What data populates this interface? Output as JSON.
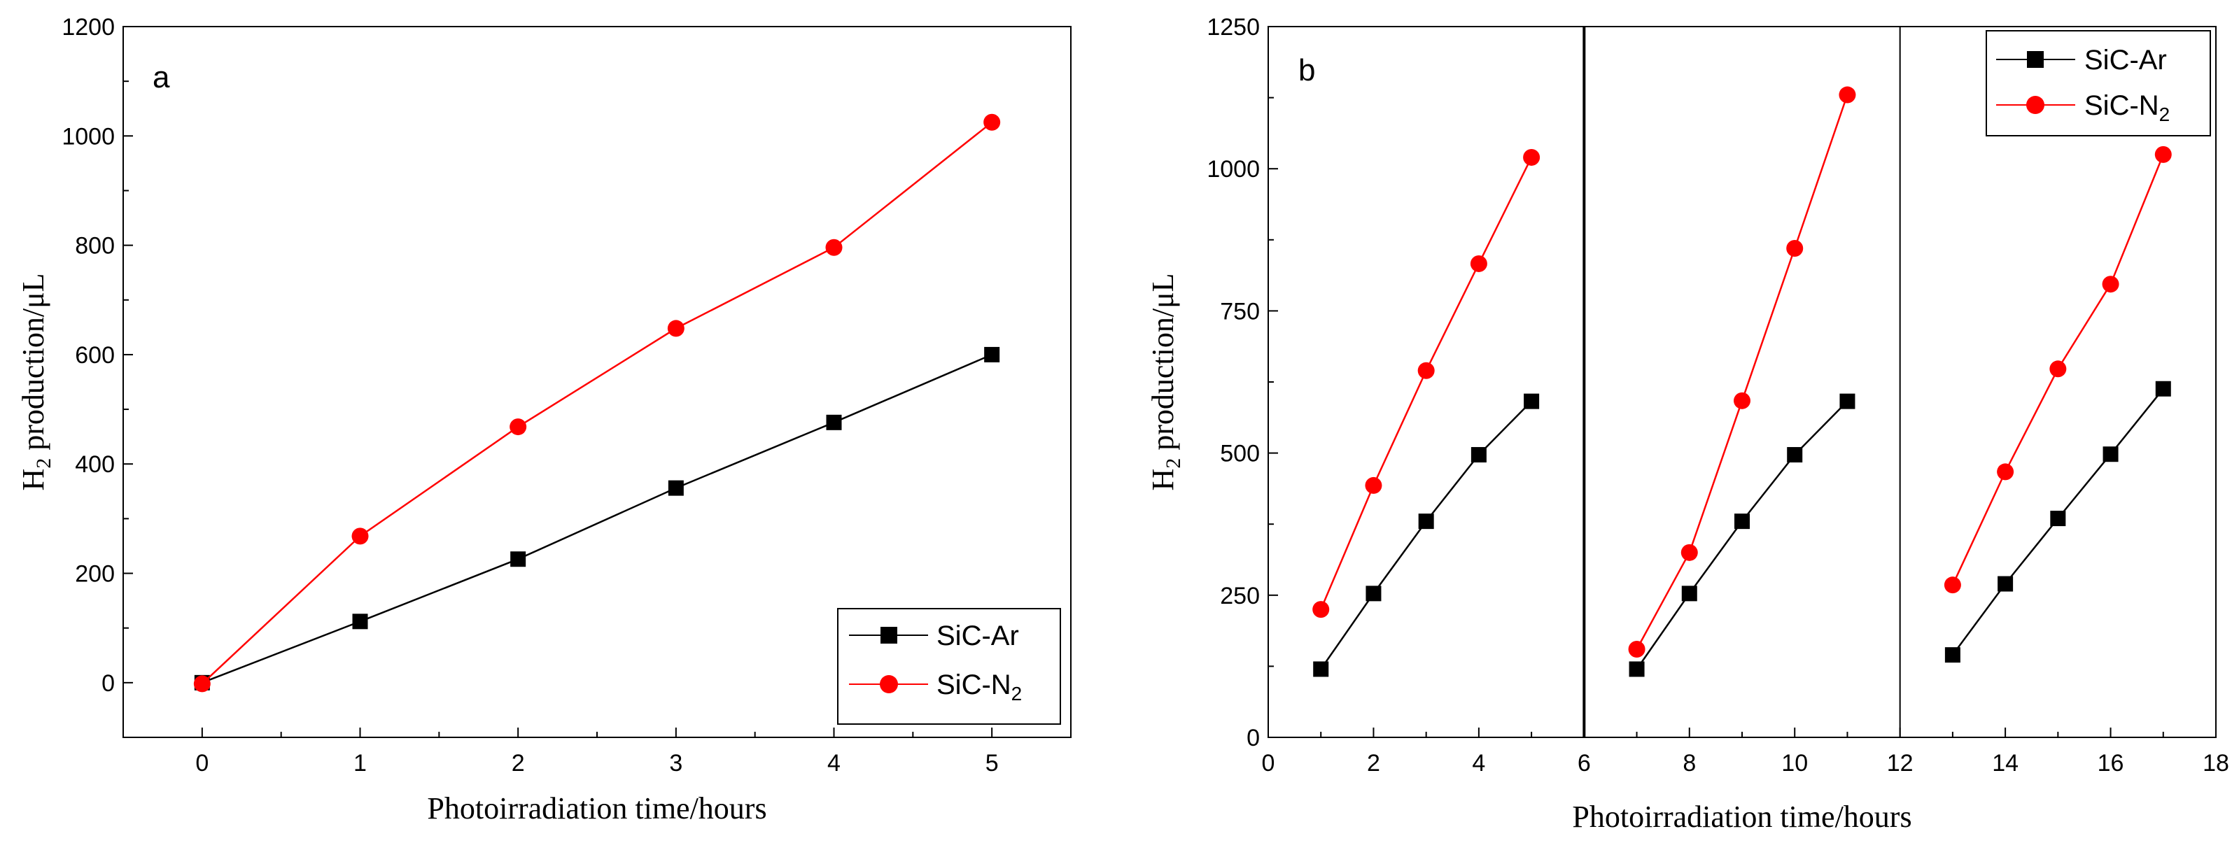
{
  "chart_data": [
    {
      "type": "line",
      "panel_label": "a",
      "xlabel": "Photoirradiation time/hours",
      "ylabel": {
        "main": "H",
        "sub": "2",
        "rest": " production/μL"
      },
      "xlim": [
        -0.5,
        5.5
      ],
      "ylim": [
        -100,
        1200
      ],
      "xticks": [
        0,
        1,
        2,
        3,
        4,
        5
      ],
      "yticks": [
        0,
        200,
        400,
        600,
        800,
        1000,
        1200
      ],
      "legend_position": "bottom-right",
      "series": [
        {
          "name": "SiC-Ar",
          "label": "SiC-Ar",
          "color": "#000000",
          "marker": "square",
          "points": [
            [
              0,
              0
            ],
            [
              1,
              112
            ],
            [
              2,
              226
            ],
            [
              3,
              356
            ],
            [
              4,
              476
            ],
            [
              5,
              600
            ]
          ]
        },
        {
          "name": "SiC-N2",
          "label": "SiC-N",
          "label_sub": "2",
          "color": "#ff0000",
          "marker": "circle",
          "points": [
            [
              0,
              -2
            ],
            [
              1,
              268
            ],
            [
              2,
              468
            ],
            [
              3,
              648
            ],
            [
              4,
              796
            ],
            [
              5,
              1025
            ]
          ]
        }
      ]
    },
    {
      "type": "line",
      "panel_label": "b",
      "xlabel": "Photoirradiation time/hours",
      "ylabel": {
        "main": "H",
        "sub": "2",
        "rest": " production/μL"
      },
      "xlim": [
        0,
        18
      ],
      "ylim": [
        0,
        1250
      ],
      "xticks": [
        0,
        2,
        4,
        6,
        8,
        10,
        12,
        14,
        16,
        18
      ],
      "yticks": [
        0,
        250,
        500,
        750,
        1000,
        1250
      ],
      "cycle_dividers": [
        6,
        12
      ],
      "legend_position": "top-right",
      "series": [
        {
          "name": "SiC-Ar",
          "label": "SiC-Ar",
          "color": "#000000",
          "marker": "square",
          "segments": [
            [
              [
                1,
                120
              ],
              [
                2,
                253
              ],
              [
                3,
                380
              ],
              [
                4,
                497
              ],
              [
                5,
                591
              ]
            ],
            [
              [
                7,
                120
              ],
              [
                8,
                253
              ],
              [
                9,
                380
              ],
              [
                10,
                497
              ],
              [
                11,
                591
              ]
            ],
            [
              [
                13,
                145
              ],
              [
                14,
                270
              ],
              [
                15,
                385
              ],
              [
                16,
                498
              ],
              [
                17,
                613
              ]
            ]
          ]
        },
        {
          "name": "SiC-N2",
          "label": "SiC-N",
          "label_sub": "2",
          "color": "#ff0000",
          "marker": "circle",
          "segments": [
            [
              [
                1,
                225
              ],
              [
                2,
                443
              ],
              [
                3,
                645
              ],
              [
                4,
                833
              ],
              [
                5,
                1020
              ]
            ],
            [
              [
                7,
                155
              ],
              [
                8,
                325
              ],
              [
                9,
                592
              ],
              [
                10,
                860
              ],
              [
                11,
                1130
              ]
            ],
            [
              [
                13,
                268
              ],
              [
                14,
                467
              ],
              [
                15,
                648
              ],
              [
                16,
                797
              ],
              [
                17,
                1025
              ]
            ]
          ]
        }
      ]
    }
  ]
}
